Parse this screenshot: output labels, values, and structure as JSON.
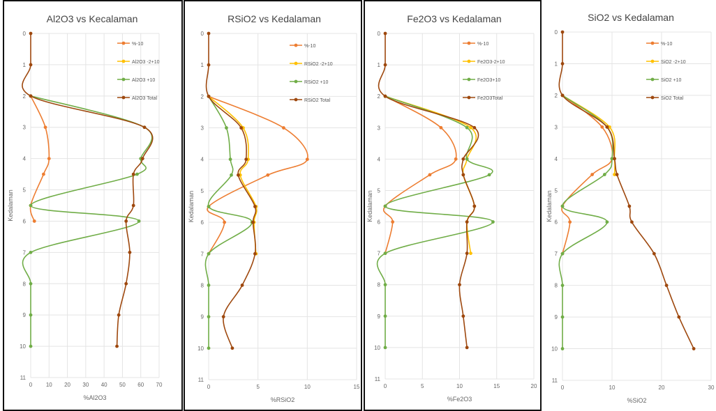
{
  "colors": {
    "s": "#ED7D31",
    "m": "#FFC000",
    "l": "#70AD47",
    "t": "#9E480E"
  },
  "chart_data": [
    {
      "type": "line",
      "title": "Al2O3 vs Kecalaman",
      "xlabel": "%Al2O3",
      "ylabel": "Kedalaman",
      "xlim": [
        0,
        70
      ],
      "ylim": [
        11,
        0
      ],
      "xticks": [
        "0",
        "10",
        "20",
        "30",
        "40",
        "50",
        "60",
        "70"
      ],
      "yticks": [
        "0",
        "1",
        "2",
        "3",
        "4",
        "5",
        "6",
        "7",
        "8",
        "9",
        "10",
        "11"
      ],
      "grid": true,
      "legend_position": "top-right",
      "legend": [
        "%-10",
        "Al2O3 -2+10",
        "Al2O3 +10",
        "Al2O3 Total"
      ],
      "series": [
        {
          "name": "%-10",
          "color": "s",
          "points": [
            [
              0,
              2
            ],
            [
              8,
              3
            ],
            [
              10,
              4
            ],
            [
              7,
              4.5
            ],
            [
              0,
              5.5
            ],
            [
              2,
              6
            ]
          ]
        },
        {
          "name": "Al2O3 -2+10",
          "color": "m",
          "points": []
        },
        {
          "name": "Al2O3 +10",
          "color": "l",
          "points": [
            [
              0,
              2
            ],
            [
              62,
              3
            ],
            [
              60,
              4
            ],
            [
              58,
              4.5
            ],
            [
              0,
              5.5
            ],
            [
              59,
              6
            ],
            [
              0,
              7
            ],
            [
              0,
              8
            ],
            [
              0,
              9
            ],
            [
              0,
              10
            ]
          ]
        },
        {
          "name": "Al2O3 Total",
          "color": "t",
          "points": [
            [
              0,
              0
            ],
            [
              0,
              1
            ],
            [
              0,
              2
            ],
            [
              62,
              3
            ],
            [
              61,
              4
            ],
            [
              56,
              4.5
            ],
            [
              56,
              5.5
            ],
            [
              52,
              6
            ],
            [
              54,
              7
            ],
            [
              52,
              8
            ],
            [
              48,
              9
            ],
            [
              47,
              10
            ]
          ]
        }
      ]
    },
    {
      "type": "line",
      "title": "RSiO2 vs Kedalaman",
      "xlabel": "%RSiO2",
      "ylabel": "Kedalaman",
      "xlim": [
        0,
        15
      ],
      "ylim": [
        11,
        0
      ],
      "xticks": [
        "0",
        "5",
        "10",
        "15"
      ],
      "yticks": [
        "0",
        "1",
        "2",
        "3",
        "4",
        "5",
        "6",
        "7",
        "8",
        "9",
        "10",
        "11"
      ],
      "grid": true,
      "legend_position": "top-right",
      "legend": [
        "%-10",
        "RSiO2 -2+10",
        "RSiO2 +10",
        "RSiO2 Total"
      ],
      "series": [
        {
          "name": "%-10",
          "color": "s",
          "points": [
            [
              0,
              2
            ],
            [
              7.6,
              3
            ],
            [
              10,
              4
            ],
            [
              6,
              4.5
            ],
            [
              0,
              5.5
            ],
            [
              1.6,
              6
            ],
            [
              0,
              7
            ]
          ]
        },
        {
          "name": "RSiO2 -2+10",
          "color": "m",
          "points": [
            [
              0,
              2
            ],
            [
              3.5,
              3
            ],
            [
              4,
              4
            ],
            [
              3.2,
              4.5
            ],
            [
              4.8,
              5.5
            ],
            [
              4.6,
              6
            ],
            [
              4.8,
              7
            ]
          ]
        },
        {
          "name": "RSiO2 +10",
          "color": "l",
          "points": [
            [
              0,
              2
            ],
            [
              1.8,
              3
            ],
            [
              2.2,
              4
            ],
            [
              2.3,
              4.5
            ],
            [
              0,
              5.5
            ],
            [
              4.4,
              6
            ],
            [
              0,
              7
            ],
            [
              0,
              8
            ],
            [
              0,
              9
            ],
            [
              0,
              10
            ]
          ]
        },
        {
          "name": "RSiO2 Total",
          "color": "t",
          "points": [
            [
              0,
              0
            ],
            [
              0,
              1
            ],
            [
              0,
              2
            ],
            [
              3.3,
              3
            ],
            [
              3.8,
              4
            ],
            [
              3,
              4.5
            ],
            [
              4.7,
              5.5
            ],
            [
              4.5,
              6
            ],
            [
              4.7,
              7
            ],
            [
              3.4,
              8
            ],
            [
              1.5,
              9
            ],
            [
              2.4,
              10
            ]
          ]
        }
      ]
    },
    {
      "type": "line",
      "title": "Fe2O3 vs Kedalaman",
      "xlabel": "%Fe2O3",
      "ylabel": "Kedalaman",
      "xlim": [
        0,
        20
      ],
      "ylim": [
        11,
        0
      ],
      "xticks": [
        "0",
        "5",
        "10",
        "15",
        "20"
      ],
      "yticks": [
        "0",
        "1",
        "2",
        "3",
        "4",
        "5",
        "6",
        "7",
        "8",
        "9",
        "10",
        "11"
      ],
      "grid": true,
      "legend_position": "top-right",
      "legend": [
        "%-10",
        "Fe2O3-2+10",
        "Fe2O3+10",
        "Fe2O3Total"
      ],
      "series": [
        {
          "name": "%-10",
          "color": "s",
          "points": [
            [
              0,
              2
            ],
            [
              7.5,
              3
            ],
            [
              9.5,
              4
            ],
            [
              6,
              4.5
            ],
            [
              0,
              5.5
            ],
            [
              1,
              6
            ],
            [
              0,
              7
            ]
          ]
        },
        {
          "name": "Fe2O3-2+10",
          "color": "m",
          "points": [
            [
              0,
              2
            ],
            [
              11.5,
              3
            ],
            [
              11,
              4
            ],
            [
              10.5,
              4.5
            ],
            [
              12,
              5.5
            ],
            [
              11,
              6
            ],
            [
              11.5,
              7
            ]
          ]
        },
        {
          "name": "Fe2O3+10",
          "color": "l",
          "points": [
            [
              0,
              2
            ],
            [
              11,
              3
            ],
            [
              11,
              4
            ],
            [
              14,
              4.5
            ],
            [
              0,
              5.5
            ],
            [
              14.5,
              6
            ],
            [
              0,
              7
            ],
            [
              0,
              8
            ],
            [
              0,
              9
            ],
            [
              0,
              10
            ]
          ]
        },
        {
          "name": "Fe2O3Total",
          "color": "t",
          "points": [
            [
              0,
              0
            ],
            [
              0,
              1
            ],
            [
              0,
              2
            ],
            [
              12,
              3
            ],
            [
              10.5,
              4
            ],
            [
              10.5,
              4.5
            ],
            [
              12,
              5.5
            ],
            [
              11,
              6
            ],
            [
              11,
              7
            ],
            [
              10,
              8
            ],
            [
              10.5,
              9
            ],
            [
              11,
              10
            ]
          ]
        }
      ]
    },
    {
      "type": "line",
      "title": "SiO2 vs Kedalaman",
      "xlabel": "%SiO2",
      "ylabel": "Kedalaman",
      "xlim": [
        0,
        30
      ],
      "ylim": [
        11,
        0
      ],
      "xticks": [
        "0",
        "10",
        "20",
        "30"
      ],
      "yticks": [
        "0",
        "1",
        "2",
        "3",
        "4",
        "5",
        "6",
        "7",
        "8",
        "9",
        "10",
        "11"
      ],
      "grid": true,
      "legend_position": "top-right",
      "legend": [
        "%-10",
        "SiO2 -2+10",
        "SiO2 +10",
        "SiO2 Total"
      ],
      "series": [
        {
          "name": "%-10",
          "color": "s",
          "points": [
            [
              0,
              2
            ],
            [
              8,
              3
            ],
            [
              10,
              4
            ],
            [
              6,
              4.5
            ],
            [
              0,
              5.5
            ],
            [
              1.5,
              6
            ],
            [
              0,
              7
            ]
          ]
        },
        {
          "name": "SiO2 -2+10",
          "color": "m",
          "points": [
            [
              0,
              2
            ],
            [
              9.5,
              3
            ],
            [
              10.5,
              4
            ],
            [
              10.5,
              4.5
            ]
          ]
        },
        {
          "name": "SiO2 +10",
          "color": "l",
          "points": [
            [
              0,
              2
            ],
            [
              9,
              3
            ],
            [
              10,
              4
            ],
            [
              8.5,
              4.5
            ],
            [
              0,
              5.5
            ],
            [
              9,
              6
            ],
            [
              0,
              7
            ],
            [
              0,
              8
            ],
            [
              0,
              9
            ],
            [
              0,
              10
            ]
          ]
        },
        {
          "name": "SiO2 Total",
          "color": "t",
          "points": [
            [
              0,
              0
            ],
            [
              0,
              1
            ],
            [
              0,
              2
            ],
            [
              9,
              3
            ],
            [
              10.5,
              4
            ],
            [
              11,
              4.5
            ],
            [
              13.5,
              5.5
            ],
            [
              14,
              6
            ],
            [
              18.5,
              7
            ],
            [
              21,
              8
            ],
            [
              23.5,
              9
            ],
            [
              26.5,
              10
            ]
          ]
        }
      ]
    }
  ]
}
